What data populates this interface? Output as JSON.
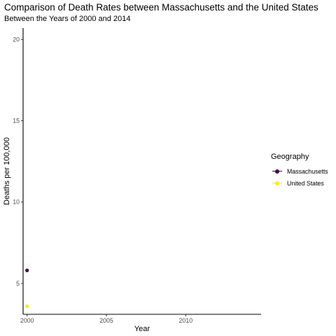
{
  "chart_data": {
    "type": "line",
    "title": "Comparison of Death Rates between Massachusetts and the United States",
    "subtitle": "Between the Years of 2000 and 2014",
    "xlabel": "Year",
    "ylabel": "Deaths per 100,000",
    "xlim": [
      1999.75,
      2014.75
    ],
    "ylim": [
      3.1,
      20.7
    ],
    "xticks": [
      2000,
      2005,
      2010
    ],
    "yticks": [
      5,
      10,
      15,
      20
    ],
    "grid": false,
    "legend_position": "right",
    "legend_title": "Geography",
    "series": [
      {
        "name": "Massachusetts",
        "color": "#440154",
        "x": [
          2000
        ],
        "y": [
          5.8
        ]
      },
      {
        "name": "United States",
        "color": "#FDE725",
        "x": [
          2000
        ],
        "y": [
          3.6
        ]
      }
    ]
  }
}
